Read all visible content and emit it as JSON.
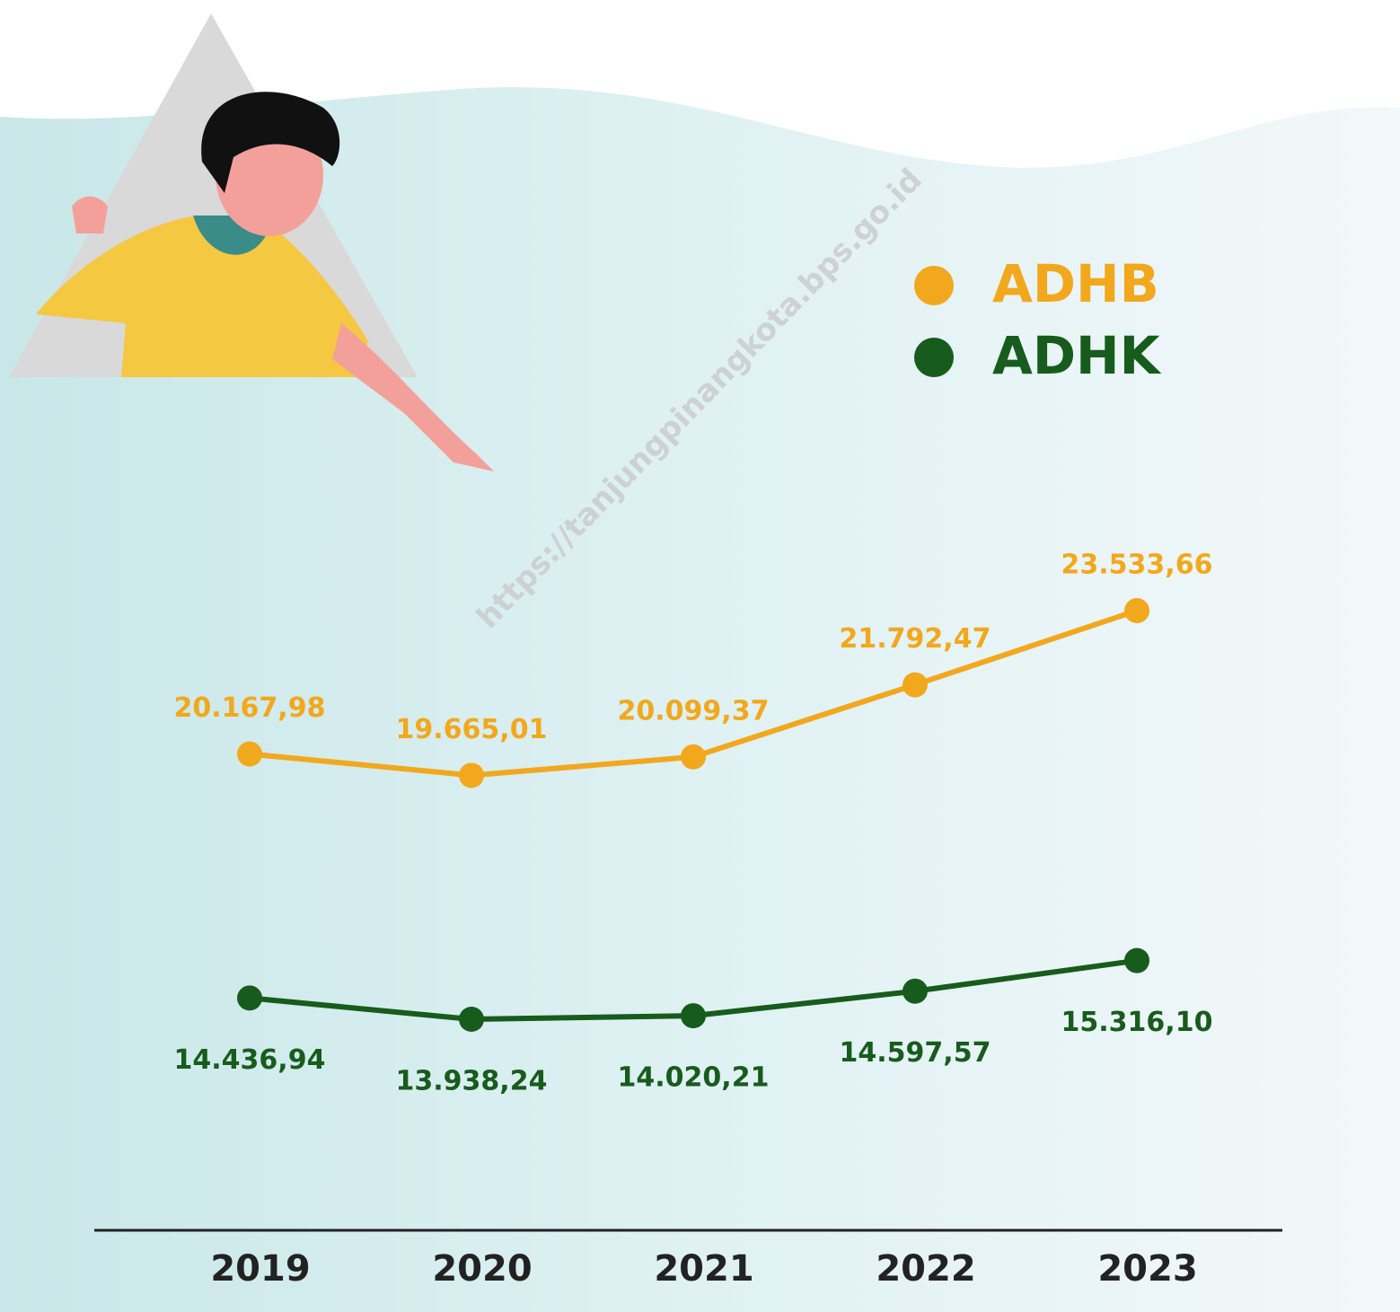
{
  "chart_data": {
    "type": "line",
    "watermark": "https://tanjungpinangkota.bps.go.id",
    "categories": [
      "2019",
      "2020",
      "2021",
      "2022",
      "2023"
    ],
    "series": [
      {
        "name": "ADHB",
        "color": "#f2a81d",
        "values": [
          20167.98,
          19665.01,
          20099.37,
          21792.47,
          23533.66
        ],
        "value_labels": [
          "20.167,98",
          "19.665,01",
          "20.099,37",
          "21.792,47",
          "23.533,66"
        ]
      },
      {
        "name": "ADHK",
        "color": "#175c1c",
        "values": [
          14436.94,
          13938.24,
          14020.21,
          14597.57,
          15316.1
        ],
        "value_labels": [
          "14.436,94",
          "13.938,24",
          "14.020,21",
          "14.597,57",
          "15.316,10"
        ]
      }
    ]
  }
}
